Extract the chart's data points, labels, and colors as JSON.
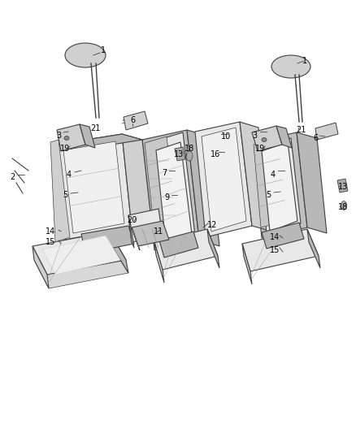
{
  "bg": "#ffffff",
  "lc": "#404040",
  "fc_light": "#e8e8e8",
  "fc_mid": "#d0d0d0",
  "fc_dark": "#b8b8b8",
  "fc_frame": "#c0c0c0",
  "tc": "#000000",
  "lw_main": 0.8,
  "lw_thin": 0.5,
  "fs": 7.0,
  "labels": {
    "1L": [
      127,
      62,
      "1"
    ],
    "1R": [
      375,
      75,
      "1"
    ],
    "2": [
      15,
      218,
      "2"
    ],
    "3L": [
      72,
      167,
      "3"
    ],
    "3R": [
      313,
      167,
      "3"
    ],
    "4L": [
      85,
      215,
      "4"
    ],
    "4R": [
      336,
      215,
      "4"
    ],
    "5L": [
      80,
      240,
      "5"
    ],
    "5R": [
      330,
      240,
      "5"
    ],
    "6L": [
      163,
      148,
      "6"
    ],
    "6R": [
      388,
      170,
      "6"
    ],
    "7": [
      202,
      213,
      "7"
    ],
    "9": [
      205,
      243,
      "9"
    ],
    "10": [
      278,
      168,
      "10"
    ],
    "11": [
      195,
      285,
      "11"
    ],
    "12": [
      261,
      277,
      "12"
    ],
    "13L": [
      220,
      190,
      "13"
    ],
    "13R": [
      422,
      230,
      "13"
    ],
    "14L": [
      62,
      285,
      "14"
    ],
    "14R": [
      338,
      292,
      "14"
    ],
    "15L": [
      62,
      298,
      "15"
    ],
    "15R": [
      338,
      308,
      "15"
    ],
    "16": [
      265,
      190,
      "16"
    ],
    "18L": [
      233,
      183,
      "18"
    ],
    "18R": [
      422,
      255,
      "18"
    ],
    "19L": [
      80,
      183,
      "19"
    ],
    "19R": [
      320,
      183,
      "19"
    ],
    "20": [
      162,
      271,
      "20"
    ],
    "21L": [
      117,
      158,
      "21"
    ],
    "21R": [
      370,
      160,
      "21"
    ]
  }
}
